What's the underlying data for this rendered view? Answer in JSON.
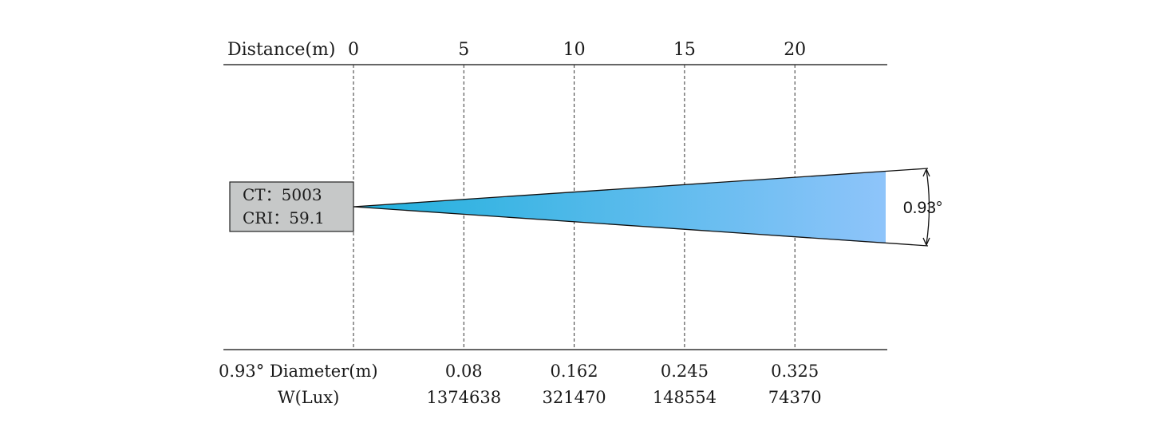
{
  "header": {
    "distance_label": "Distance(m)",
    "ticks": [
      "0",
      "5",
      "10",
      "15",
      "20"
    ]
  },
  "source_box": {
    "ct_line": "CT：5003",
    "cri_line": "CRI：59.1"
  },
  "beam": {
    "angle_label": "0.93°",
    "gradient_start_color": "#1fb0dc",
    "gradient_end_color": "#8ec4fa"
  },
  "footer": {
    "diameter_label": "0.93° Diameter(m)",
    "lux_label": "W(Lux)",
    "diameters": [
      "0.08",
      "0.162",
      "0.245",
      "0.325"
    ],
    "lux_values": [
      "1374638",
      "321470",
      "148554",
      "74370"
    ]
  },
  "chart_data": {
    "type": "table",
    "beam_angle_deg": 0.93,
    "distance_m": [
      5,
      10,
      15,
      20
    ],
    "diameter_m": [
      0.08,
      0.162,
      0.245,
      0.325
    ],
    "illuminance_lux": [
      1374638,
      321470,
      148554,
      74370
    ],
    "color_temperature": 5003,
    "cri": 59.1
  }
}
